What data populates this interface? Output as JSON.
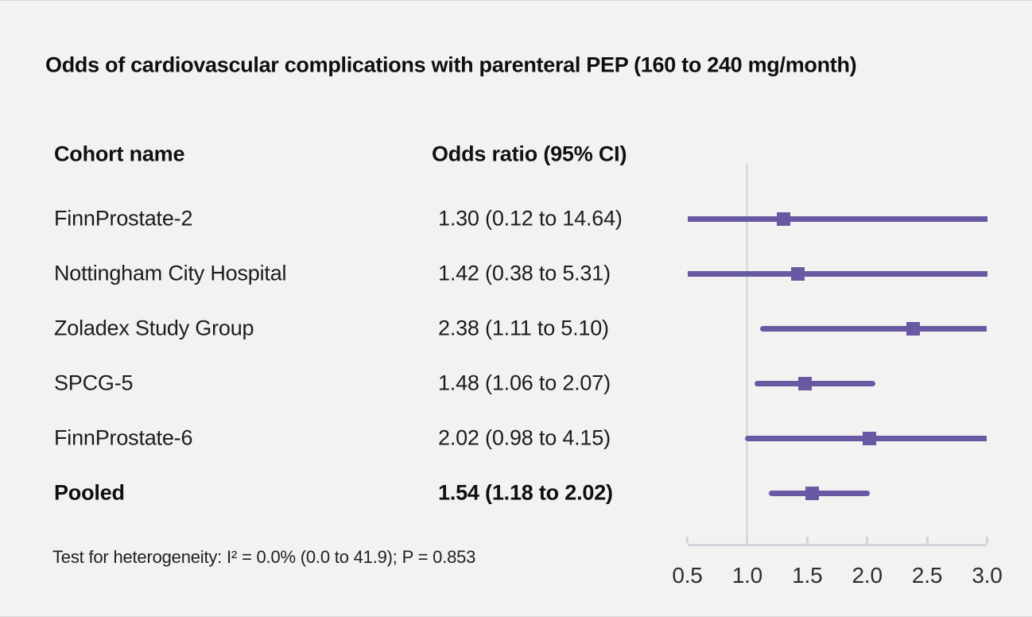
{
  "title": "Odds of cardiovascular complications with parenteral PEP (160 to 240 mg/month)",
  "table": {
    "col1_header": "Cohort name",
    "col2_header": "Odds ratio (95% CI)"
  },
  "footnote": "Test for heterogeneity: I² = 0.0% (0.0 to 41.9); P = 0.853",
  "colors": {
    "accent_purple": "#6959a3",
    "reference_line": "#d9dce2",
    "axis_line": "#d2d6db",
    "background": "#f2f2f1",
    "text": "#1c1c1c"
  },
  "chart_data": {
    "type": "forest",
    "title": "Odds of cardiovascular complications with parenteral PEP (160 to 240 mg/month)",
    "xlabel": "",
    "ylabel": "",
    "xlim": [
      0.5,
      3.0
    ],
    "reference_value": 1.0,
    "x_ticks": [
      "0.5",
      "1.0",
      "1.5",
      "2.0",
      "2.5",
      "3.0"
    ],
    "x_tick_values": [
      0.5,
      1.0,
      1.5,
      2.0,
      2.5,
      3.0
    ],
    "rows": [
      {
        "label": "FinnProstate-2",
        "or_text": "1.30 (0.12 to 14.64)",
        "or": 1.3,
        "ci_low": 0.12,
        "ci_high": 14.64,
        "bold": false
      },
      {
        "label": "Nottingham City Hospital",
        "or_text": "1.42 (0.38 to 5.31)",
        "or": 1.42,
        "ci_low": 0.38,
        "ci_high": 5.31,
        "bold": false
      },
      {
        "label": "Zoladex Study Group",
        "or_text": "2.38 (1.11 to 5.10)",
        "or": 2.38,
        "ci_low": 1.11,
        "ci_high": 5.1,
        "bold": false
      },
      {
        "label": "SPCG-5",
        "or_text": "1.48 (1.06 to 2.07)",
        "or": 1.48,
        "ci_low": 1.06,
        "ci_high": 2.07,
        "bold": false
      },
      {
        "label": "FinnProstate-6",
        "or_text": "2.02 (0.98 to 4.15)",
        "or": 2.02,
        "ci_low": 0.98,
        "ci_high": 4.15,
        "bold": false
      },
      {
        "label": "Pooled",
        "or_text": "1.54 (1.18 to 2.02)",
        "or": 1.54,
        "ci_low": 1.18,
        "ci_high": 2.02,
        "bold": true
      }
    ],
    "heterogeneity_note": "Test for heterogeneity: I² = 0.0% (0.0 to 41.9); P = 0.853"
  }
}
